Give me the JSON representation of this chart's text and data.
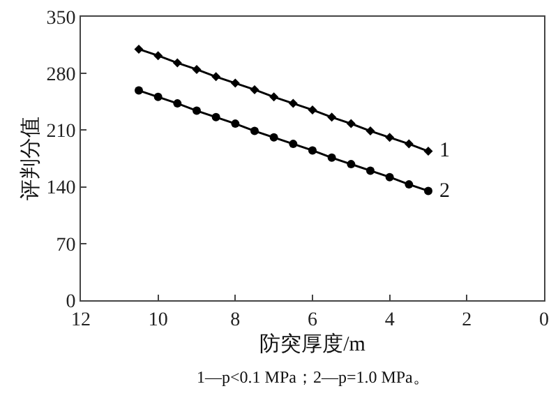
{
  "chart_data": {
    "type": "line",
    "xlabel": "防突厚度/m",
    "ylabel": "评判分值",
    "x": [
      10.5,
      10,
      9.5,
      9,
      8.5,
      8,
      7.5,
      7,
      6.5,
      6,
      5.5,
      5,
      4.5,
      4,
      3.5,
      3
    ],
    "series": [
      {
        "color": "#000000",
        "marker": "diamond",
        "values": [
          310,
          302,
          293,
          285,
          276,
          268,
          260,
          251,
          243,
          235,
          226,
          218,
          209,
          201,
          193,
          184
        ]
      },
      {
        "color": "#000000",
        "marker": "circle",
        "values": [
          259,
          251,
          243,
          234,
          226,
          218,
          209,
          201,
          193,
          185,
          176,
          168,
          160,
          152,
          143,
          135
        ]
      }
    ],
    "annotations": [
      {
        "text": "1",
        "x": 3,
        "y": 184
      },
      {
        "text": "2",
        "x": 3,
        "y": 135
      },
      "1—p<0.1 MPa；2—p=1.0 MPa。"
    ],
    "xlim": [
      12,
      0
    ],
    "xticks": [
      12,
      10,
      8,
      6,
      4,
      2,
      0
    ],
    "ylim": [
      0,
      350
    ],
    "yticks": [
      0,
      70,
      140,
      210,
      280,
      350
    ],
    "line_style": "solid"
  }
}
